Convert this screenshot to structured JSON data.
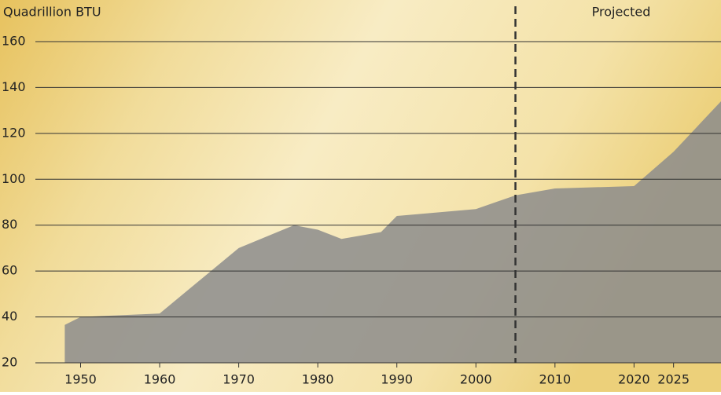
{
  "chart_data": {
    "type": "area",
    "y_label": "Quadrillion BTU",
    "annotation": "Projected",
    "projection_start": 2005,
    "x": [
      1948,
      1950,
      1960,
      1970,
      1977,
      1980,
      1983,
      1988,
      1990,
      2000,
      2005,
      2010,
      2020,
      2025,
      2031
    ],
    "values": [
      36.5,
      40,
      41.5,
      70,
      80,
      78,
      74,
      77,
      84,
      87,
      93,
      96,
      97,
      112,
      134
    ],
    "color": "#8c8c8c",
    "xlim": [
      1941,
      2031
    ],
    "xticks": [
      1950,
      1960,
      1970,
      1980,
      1990,
      2000,
      2010,
      2020,
      2025
    ],
    "ylim": [
      20,
      160
    ],
    "yticks": [
      20,
      40,
      60,
      80,
      100,
      120,
      140,
      160
    ],
    "grid": true
  }
}
